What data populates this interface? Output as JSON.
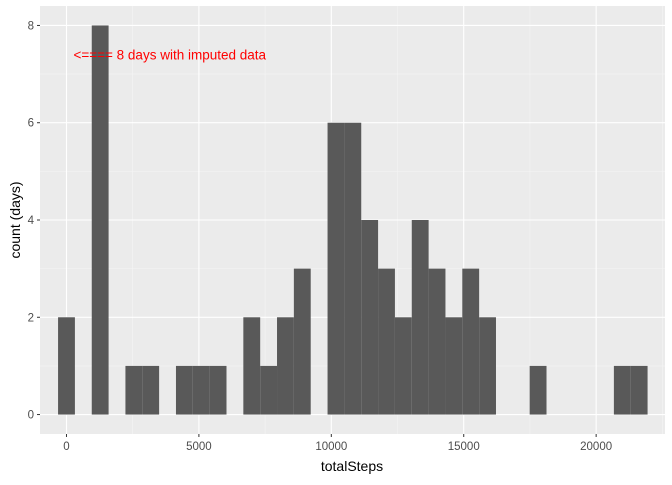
{
  "chart_data": {
    "type": "bar",
    "subtype": "histogram",
    "title": "",
    "xlabel": "totalSteps",
    "ylabel": "count (days)",
    "xlim": [
      -1000,
      22600
    ],
    "ylim": [
      -0.4,
      8.4
    ],
    "x_ticks": [
      0,
      5000,
      10000,
      15000,
      20000
    ],
    "y_ticks": [
      0,
      2,
      4,
      6,
      8
    ],
    "grid": true,
    "bin_width": 636,
    "bins": [
      {
        "x": 0,
        "count": 2
      },
      {
        "x": 1272,
        "count": 8
      },
      {
        "x": 2544,
        "count": 1
      },
      {
        "x": 3180,
        "count": 1
      },
      {
        "x": 4452,
        "count": 1
      },
      {
        "x": 5088,
        "count": 1
      },
      {
        "x": 5724,
        "count": 1
      },
      {
        "x": 6996,
        "count": 2
      },
      {
        "x": 7632,
        "count": 1
      },
      {
        "x": 8268,
        "count": 2
      },
      {
        "x": 8904,
        "count": 3
      },
      {
        "x": 10176,
        "count": 6
      },
      {
        "x": 10812,
        "count": 6
      },
      {
        "x": 11448,
        "count": 4
      },
      {
        "x": 12084,
        "count": 3
      },
      {
        "x": 12720,
        "count": 2
      },
      {
        "x": 13356,
        "count": 4
      },
      {
        "x": 13992,
        "count": 3
      },
      {
        "x": 14628,
        "count": 2
      },
      {
        "x": 15264,
        "count": 3
      },
      {
        "x": 15900,
        "count": 2
      },
      {
        "x": 17808,
        "count": 1
      },
      {
        "x": 20988,
        "count": 1
      },
      {
        "x": 21624,
        "count": 1
      }
    ],
    "annotations": [
      {
        "text": "<==== 8 days with imputed data",
        "x": 3900,
        "y": 7.4,
        "color": "#ff0000"
      }
    ],
    "colors": {
      "bar": "#595959",
      "panel_background": "#ebebeb",
      "grid_major": "#ffffff",
      "grid_minor": "#f5f5f5"
    }
  }
}
